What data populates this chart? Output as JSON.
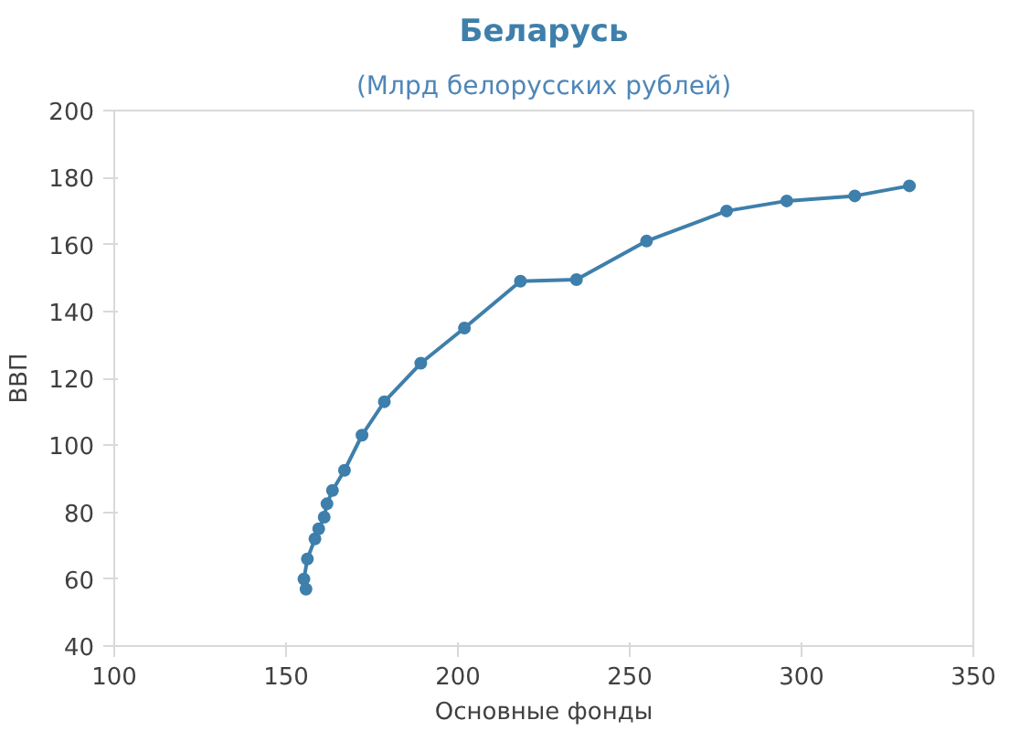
{
  "chart_data": {
    "type": "line",
    "title": "Беларусь",
    "subtitle": "(Млрд белорусских рублей)",
    "xlabel": "Основные фонды",
    "ylabel": "ВВП",
    "x": [
      155.8,
      155.2,
      156.2,
      158.4,
      159.5,
      161.1,
      161.9,
      163.5,
      167,
      172.1,
      178.6,
      189.2,
      201.9,
      218.2,
      234.5,
      254.9,
      278.2,
      295.7,
      315.5,
      331.4
    ],
    "series": [
      {
        "color": "#3e7fab",
        "values": [
          57,
          60,
          66,
          72,
          75,
          78.5,
          82.5,
          86.5,
          92.5,
          103,
          113,
          124.5,
          135,
          149,
          149.5,
          161,
          170,
          173,
          174.5,
          177.5
        ]
      }
    ],
    "xlim": [
      100,
      350
    ],
    "xticks": [
      100,
      150,
      200,
      250,
      300,
      350
    ],
    "ylim": [
      40,
      200
    ],
    "yticks": [
      40,
      60,
      80,
      100,
      120,
      140,
      160,
      180,
      200
    ],
    "grid": false,
    "marker": "circle",
    "line_style": "solid"
  }
}
